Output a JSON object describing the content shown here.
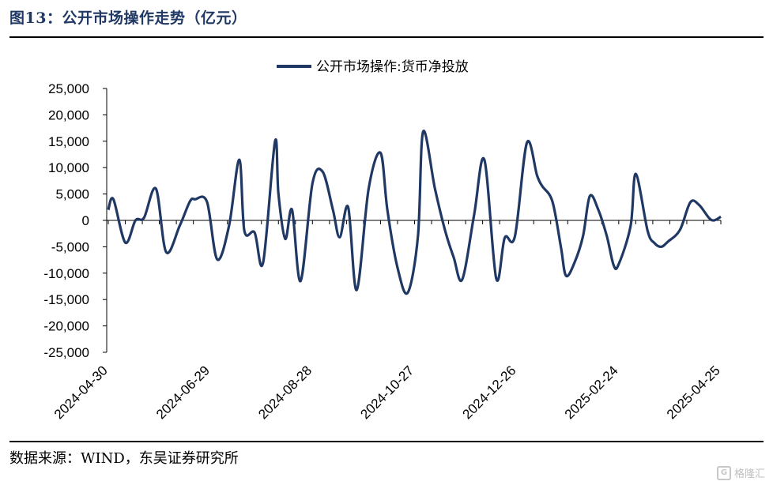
{
  "figure": {
    "title": "图13：公开市场操作走势（亿元）",
    "source": "数据来源：WIND，东吴证券研究所",
    "watermark": "格隆汇"
  },
  "colors": {
    "series": "#1f3864",
    "title": "#1f3864",
    "axis": "#000000"
  },
  "chart_data": {
    "type": "line",
    "title": "",
    "xlabel": "",
    "ylabel": "",
    "ylim": [
      -25000,
      25000
    ],
    "yticks": [
      -25000,
      -20000,
      -15000,
      -10000,
      -5000,
      0,
      5000,
      10000,
      15000,
      20000,
      25000
    ],
    "ytick_labels": [
      "-25,000",
      "-20,000",
      "-15,000",
      "-10,000",
      "-5,000",
      "0",
      "5,000",
      "10,000",
      "15,000",
      "20,000",
      "25,000"
    ],
    "xtick_labels": [
      "2024-04-30",
      "2024-06-29",
      "2024-08-28",
      "2024-10-27",
      "2024-12-26",
      "2025-02-24",
      "2025-04-25"
    ],
    "grid": false,
    "legend_position": "top-center",
    "series": [
      {
        "name": "公开市场操作:货币净投放",
        "x": [
          "2024-04-30",
          "2024-05-03",
          "2024-05-10",
          "2024-05-16",
          "2024-05-21",
          "2024-05-28",
          "2024-06-03",
          "2024-06-11",
          "2024-06-17",
          "2024-06-20",
          "2024-06-27",
          "2024-07-03",
          "2024-07-10",
          "2024-07-16",
          "2024-07-19",
          "2024-07-25",
          "2024-07-30",
          "2024-08-06",
          "2024-08-08",
          "2024-08-12",
          "2024-08-16",
          "2024-08-21",
          "2024-08-28",
          "2024-09-03",
          "2024-09-09",
          "2024-09-13",
          "2024-09-18",
          "2024-09-23",
          "2024-09-30",
          "2024-10-07",
          "2024-10-11",
          "2024-10-17",
          "2024-10-23",
          "2024-10-29",
          "2024-11-01",
          "2024-11-08",
          "2024-11-14",
          "2024-11-19",
          "2024-11-24",
          "2024-12-01",
          "2024-12-07",
          "2024-12-14",
          "2024-12-19",
          "2024-12-25",
          "2025-01-01",
          "2025-01-07",
          "2025-01-10",
          "2025-01-16",
          "2025-01-21",
          "2025-01-24",
          "2025-01-29",
          "2025-02-03",
          "2025-02-07",
          "2025-02-12",
          "2025-02-17",
          "2025-02-21",
          "2025-02-24",
          "2025-03-03",
          "2025-03-06",
          "2025-03-13",
          "2025-03-17",
          "2025-03-21",
          "2025-03-25",
          "2025-04-01",
          "2025-04-07",
          "2025-04-12",
          "2025-04-18",
          "2025-04-21",
          "2025-04-25"
        ],
        "values": [
          2000,
          4000,
          -4200,
          0,
          500,
          6000,
          -6000,
          -1000,
          3600,
          4000,
          3500,
          -7400,
          -1000,
          11500,
          -2000,
          -2300,
          -8000,
          15000,
          5000,
          -3500,
          2000,
          -11500,
          7000,
          9200,
          2000,
          -3200,
          2500,
          -13200,
          6000,
          12800,
          2000,
          -9000,
          -13700,
          -3000,
          16800,
          6000,
          -2000,
          -7000,
          -11200,
          1000,
          11500,
          -11000,
          -3300,
          -3000,
          14700,
          8500,
          6500,
          3600,
          -5000,
          -10500,
          -8000,
          -3000,
          4600,
          2000,
          -3000,
          -8500,
          -8300,
          -1000,
          8800,
          -2000,
          -4300,
          -5000,
          -4000,
          -1800,
          3400,
          3000,
          500,
          0,
          700
        ]
      }
    ]
  }
}
